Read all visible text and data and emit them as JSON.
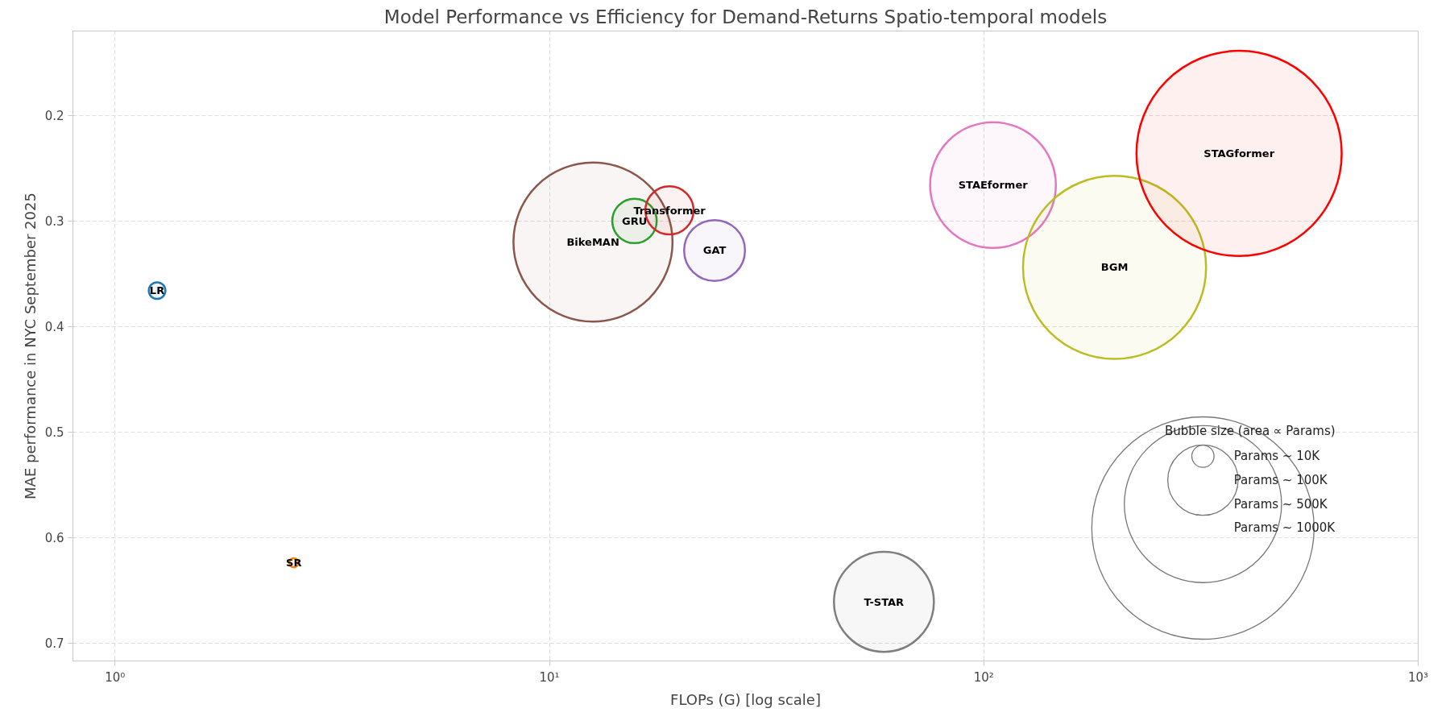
{
  "chart_data": {
    "type": "bubble",
    "title": "Model Performance vs Efficiency for Demand-Returns Spatio-temporal models",
    "xlabel": "FLOPs (G) [log scale]",
    "ylabel": "MAE performance in NYC September 2025",
    "legend_title": "Bubble size (area ∝ Params)",
    "log": "x",
    "grid": true,
    "legend": "bottom right",
    "xlim": [
      0.8,
      1000
    ],
    "xticks": [
      {
        "value": 1,
        "label": "10⁰"
      },
      {
        "value": 10,
        "label": "10¹"
      },
      {
        "value": 100,
        "label": "10²"
      },
      {
        "value": 1000,
        "label": "10³"
      }
    ],
    "ylim": [
      0.717,
      0.12
    ],
    "yticks": [
      0.2,
      0.3,
      0.4,
      0.5,
      0.6,
      0.7
    ],
    "size_legend": [
      {
        "value": 10,
        "label": "Params ~ 10K"
      },
      {
        "value": 100,
        "label": "Params ~ 100K"
      },
      {
        "value": 500,
        "label": "Params ~ 500K"
      },
      {
        "value": 1000,
        "label": "Params ~ 1000K"
      }
    ],
    "series": [
      {
        "name": "LR",
        "color": "#1f77b4",
        "x": [
          1.25
        ],
        "values": [
          0.366
        ],
        "sizes": [
          5.6
        ]
      },
      {
        "name": "SR",
        "color": "#ff7f0e",
        "x": [
          2.58
        ],
        "values": [
          0.624
        ],
        "sizes": [
          1.7
        ]
      },
      {
        "name": "BikeMAN",
        "color": "#8c564b",
        "x": [
          12.6
        ],
        "values": [
          0.32
        ],
        "sizes": [
          512
        ]
      },
      {
        "name": "GRU",
        "color": "#2ca02c",
        "x": [
          15.7
        ],
        "values": [
          0.3
        ],
        "sizes": [
          40
        ]
      },
      {
        "name": "Transformer",
        "color": "#d62728",
        "x": [
          18.9
        ],
        "values": [
          0.29
        ],
        "sizes": [
          47
        ]
      },
      {
        "name": "GAT",
        "color": "#9467bd",
        "x": [
          24.0
        ],
        "values": [
          0.328
        ],
        "sizes": [
          75
        ]
      },
      {
        "name": "STAEformer",
        "color": "#e377c2",
        "x": [
          105
        ],
        "values": [
          0.266
        ],
        "sizes": [
          320
        ]
      },
      {
        "name": "BGM",
        "color": "#bcbd22",
        "x": [
          200
        ],
        "values": [
          0.344
        ],
        "sizes": [
          678
        ]
      },
      {
        "name": "STAGformer",
        "color": "#ff0000",
        "x": [
          387
        ],
        "values": [
          0.236
        ],
        "sizes": [
          852
        ]
      },
      {
        "name": "T-STAR",
        "color": "#7f7f7f",
        "x": [
          58.9
        ],
        "values": [
          0.661
        ],
        "sizes": [
          202
        ]
      }
    ]
  }
}
